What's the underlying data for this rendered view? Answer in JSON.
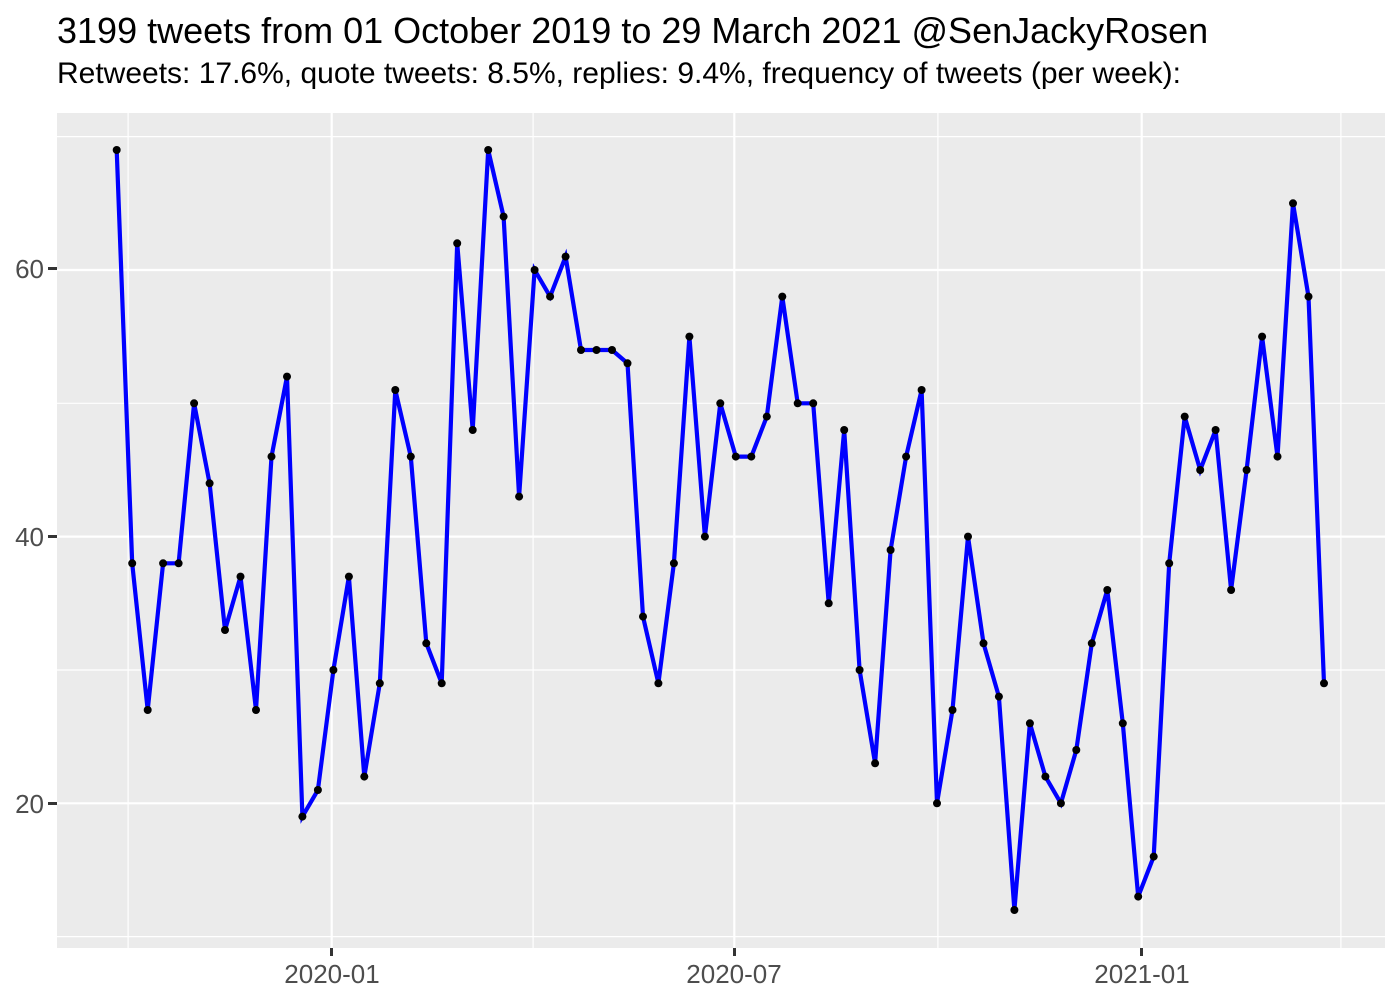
{
  "header": {
    "title": "3199 tweets from 01 October 2019 to 29 March 2021 @SenJackyRosen",
    "subtitle": "Retweets: 17.6%, quote tweets: 8.5%, replies: 9.4%, frequency of tweets (per week):"
  },
  "chart_data": {
    "type": "line",
    "title": "3199 tweets from 01 October 2019 to 29 March 2021 @SenJackyRosen",
    "subtitle": "Retweets: 17.6%, quote tweets: 8.5%, replies: 9.4%, frequency of tweets (per week):",
    "series_name": "tweets per week",
    "x": [
      "2019-09-29",
      "2019-10-06",
      "2019-10-13",
      "2019-10-20",
      "2019-10-27",
      "2019-11-03",
      "2019-11-10",
      "2019-11-17",
      "2019-11-24",
      "2019-12-01",
      "2019-12-08",
      "2019-12-15",
      "2019-12-22",
      "2019-12-29",
      "2020-01-05",
      "2020-01-12",
      "2020-01-19",
      "2020-01-26",
      "2020-02-02",
      "2020-02-09",
      "2020-02-16",
      "2020-02-23",
      "2020-03-01",
      "2020-03-08",
      "2020-03-15",
      "2020-03-22",
      "2020-03-29",
      "2020-04-05",
      "2020-04-12",
      "2020-04-19",
      "2020-04-26",
      "2020-05-03",
      "2020-05-10",
      "2020-05-17",
      "2020-05-24",
      "2020-05-31",
      "2020-06-07",
      "2020-06-14",
      "2020-06-21",
      "2020-06-28",
      "2020-07-05",
      "2020-07-12",
      "2020-07-19",
      "2020-07-26",
      "2020-08-02",
      "2020-08-09",
      "2020-08-16",
      "2020-08-23",
      "2020-08-30",
      "2020-09-06",
      "2020-09-13",
      "2020-09-20",
      "2020-09-27",
      "2020-10-04",
      "2020-10-11",
      "2020-10-18",
      "2020-10-25",
      "2020-11-01",
      "2020-11-08",
      "2020-11-15",
      "2020-11-22",
      "2020-11-29",
      "2020-12-06",
      "2020-12-13",
      "2020-12-20",
      "2020-12-27",
      "2021-01-03",
      "2021-01-10",
      "2021-01-17",
      "2021-01-24",
      "2021-01-31",
      "2021-02-07",
      "2021-02-14",
      "2021-02-21",
      "2021-02-28",
      "2021-03-07",
      "2021-03-14",
      "2021-03-21",
      "2021-03-28"
    ],
    "values": [
      69,
      38,
      27,
      38,
      38,
      50,
      44,
      33,
      37,
      27,
      46,
      52,
      19,
      21,
      30,
      37,
      22,
      29,
      51,
      46,
      32,
      29,
      62,
      48,
      69,
      64,
      43,
      60,
      58,
      61,
      54,
      54,
      54,
      53,
      34,
      29,
      38,
      55,
      40,
      50,
      46,
      46,
      49,
      58,
      50,
      50,
      35,
      48,
      30,
      23,
      39,
      46,
      51,
      20,
      27,
      40,
      32,
      28,
      12,
      26,
      22,
      20,
      24,
      32,
      36,
      26,
      13,
      16,
      38,
      49,
      45,
      48,
      36,
      45,
      55,
      46,
      65,
      58,
      29
    ],
    "x_tick_labels": [
      "2020-01",
      "2020-07",
      "2021-01"
    ],
    "y_tick_labels": [
      "20",
      "40",
      "60"
    ],
    "y_major_gridlines": [
      20,
      40,
      60
    ],
    "y_minor_gridlines": [
      10,
      30,
      50,
      70
    ],
    "x_minor_gridline_labels": [
      "2019-10",
      "2020-04",
      "2020-10",
      "2021-04"
    ],
    "ylim": [
      9.2,
      71.9
    ],
    "xlabel": "",
    "ylabel": "",
    "legend": "none",
    "grid": "white major and minor gridlines on grey panel",
    "colors": {
      "line": "#0000FF",
      "point": "#000000",
      "panel_bg": "#EBEBEB",
      "gridline": "#FFFFFF",
      "axis_text": "#4D4D4D",
      "tick_mark": "#333333",
      "title_text": "#000000",
      "page_bg": "#FFFFFF"
    }
  }
}
